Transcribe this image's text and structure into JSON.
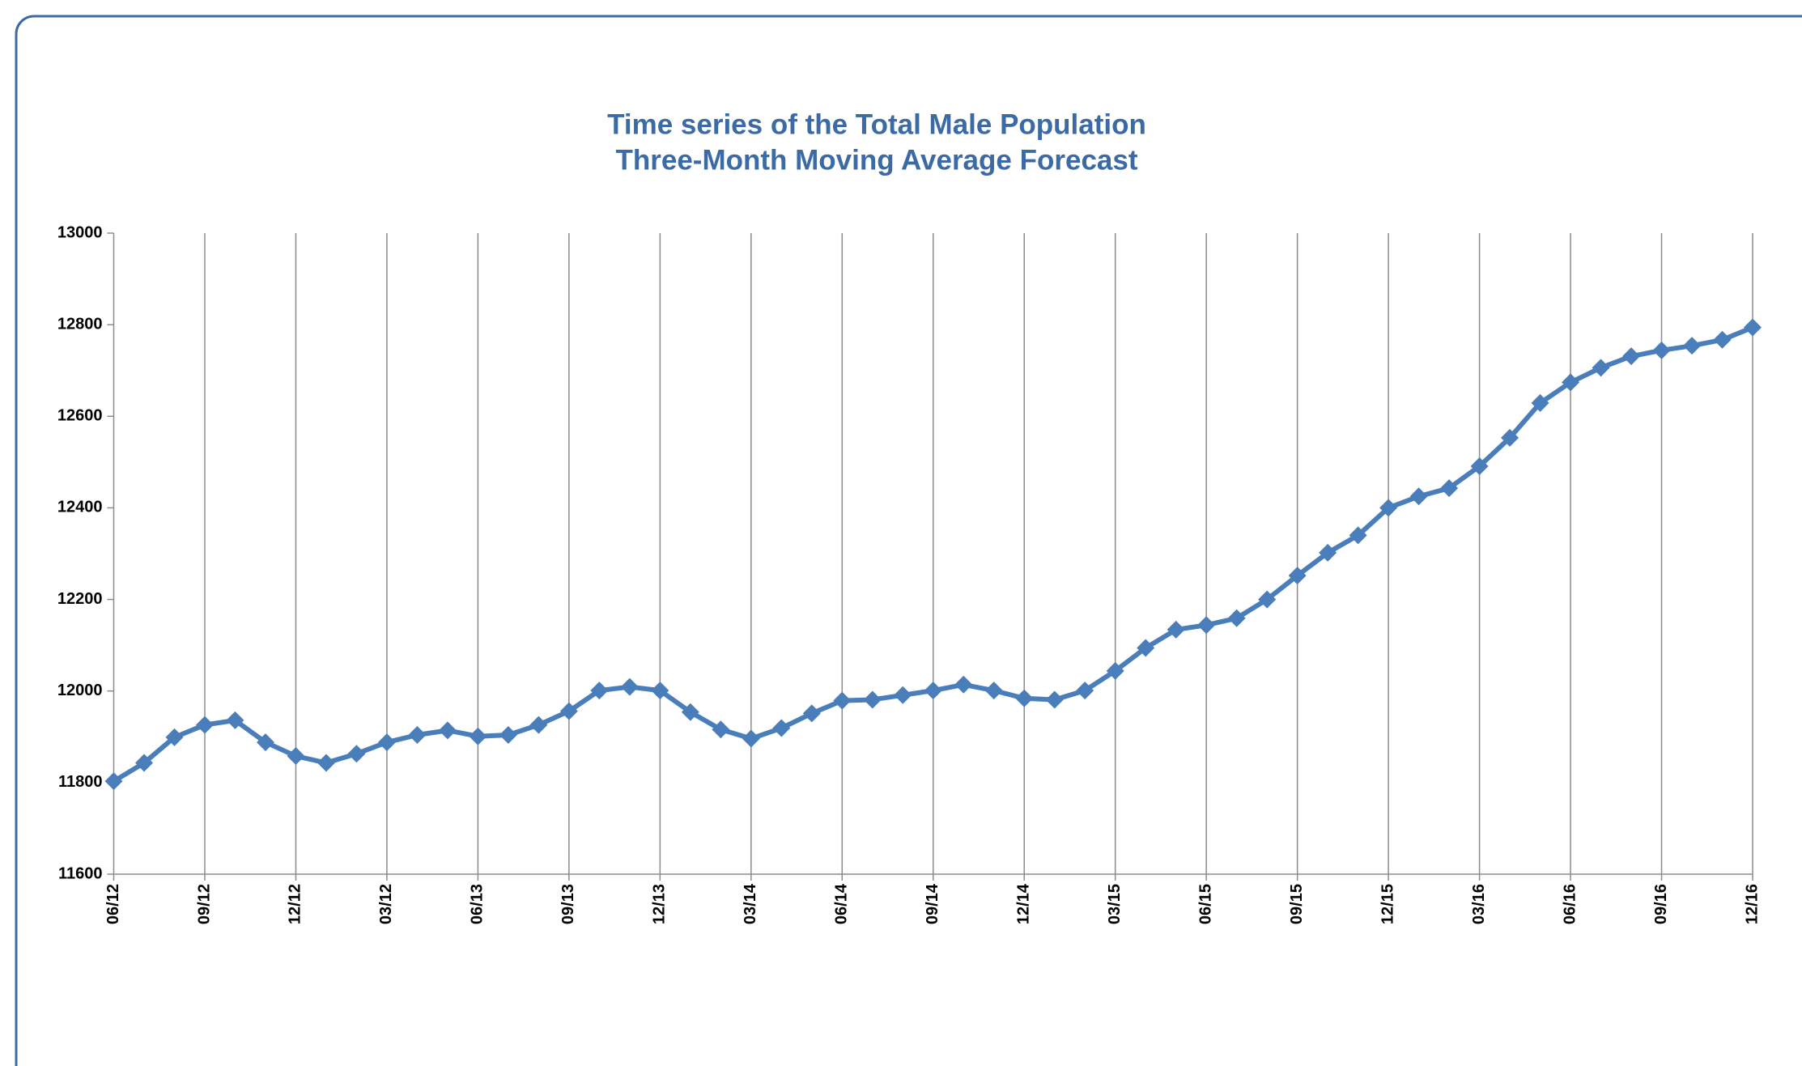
{
  "chart_data": {
    "type": "line",
    "title": "Time series of the Total Male Population",
    "subtitle": "Three-Month Moving Average Forecast",
    "categories": [
      "06/12",
      null,
      null,
      "09/12",
      null,
      null,
      "12/12",
      null,
      null,
      "03/12",
      null,
      null,
      "06/13",
      null,
      null,
      "09/13",
      null,
      null,
      "12/13",
      null,
      null,
      "03/14",
      null,
      null,
      "06/14",
      null,
      null,
      "09/14",
      null,
      null,
      "12/14",
      null,
      null,
      "03/15",
      null,
      null,
      "06/15",
      null,
      null,
      "09/15",
      null,
      null,
      "12/15",
      null,
      null,
      "03/16",
      null,
      null,
      "06/16",
      null,
      null,
      "09/16",
      null,
      null,
      "12/16"
    ],
    "series": [
      {
        "color": "#4a7ebb",
        "values": [
          11803,
          11843,
          11899,
          11926,
          11936,
          11888,
          11858,
          11843,
          11863,
          11888,
          11904,
          11914,
          11901,
          11904,
          11926,
          11956,
          12001,
          12009,
          12001,
          11954,
          11916,
          11896,
          11919,
          11951,
          11979,
          11981,
          11991,
          12001,
          12014,
          12001,
          11984,
          11981,
          12001,
          12044,
          12094,
          12134,
          12144,
          12159,
          12200,
          12252,
          12302,
          12340,
          12400,
          12425,
          12443,
          12491,
          12553,
          12629,
          12674,
          12706,
          12731,
          12744,
          12754,
          12767,
          12794
        ]
      }
    ],
    "ylim": [
      11600,
      13000
    ],
    "yticks": [
      11600,
      11800,
      12000,
      12200,
      12400,
      12600,
      12800,
      13000
    ],
    "grid": "x"
  }
}
